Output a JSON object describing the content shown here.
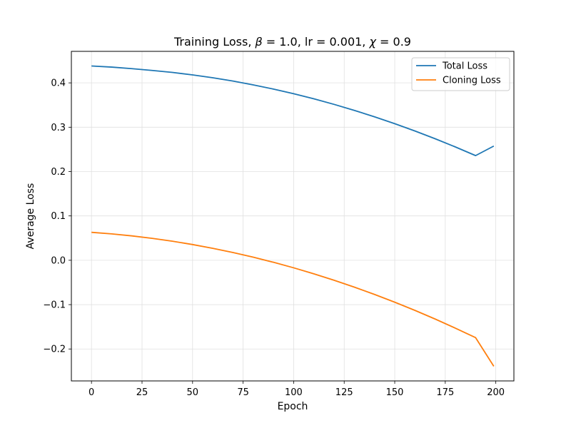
{
  "chart_data": {
    "type": "line",
    "title_parts": [
      {
        "text": "Training Loss, ",
        "italic": false
      },
      {
        "text": "β",
        "italic": true
      },
      {
        "text": " = 1.0, lr = 0.001, ",
        "italic": false
      },
      {
        "text": "χ",
        "italic": true
      },
      {
        "text": " = 0.9",
        "italic": false
      }
    ],
    "xlabel": "Epoch",
    "ylabel": "Average Loss",
    "xlim": [
      -9.95,
      208.95
    ],
    "ylim": [
      -0.272,
      0.471
    ],
    "xticks": [
      0,
      25,
      50,
      75,
      100,
      125,
      150,
      175,
      200
    ],
    "yticks": [
      -0.2,
      -0.1,
      0.0,
      0.1,
      0.2,
      0.3,
      0.4
    ],
    "ytick_labels": [
      "−0.2",
      "−0.1",
      "0.0",
      "0.1",
      "0.2",
      "0.3",
      "0.4"
    ],
    "grid": true,
    "legend_position": "top-right",
    "x": [
      0,
      10,
      20,
      30,
      40,
      50,
      60,
      70,
      80,
      90,
      100,
      110,
      120,
      130,
      140,
      150,
      160,
      170,
      180,
      190,
      199
    ],
    "series": [
      {
        "name": "Total Loss",
        "color": "#1f77b4",
        "values": [
          0.438,
          0.4355,
          0.432,
          0.428,
          0.4235,
          0.418,
          0.4115,
          0.404,
          0.3955,
          0.386,
          0.3755,
          0.364,
          0.3515,
          0.338,
          0.3235,
          0.308,
          0.2915,
          0.274,
          0.2555,
          0.236,
          0.2575
        ]
      },
      {
        "name": "Cloning Loss",
        "color": "#ff7f0e",
        "values": [
          0.063,
          0.0595,
          0.055,
          0.0495,
          0.043,
          0.0355,
          0.027,
          0.0175,
          0.007,
          -0.0045,
          -0.017,
          -0.0305,
          -0.045,
          -0.0605,
          -0.077,
          -0.0945,
          -0.113,
          -0.1325,
          -0.153,
          -0.1745,
          -0.239
        ]
      }
    ]
  }
}
